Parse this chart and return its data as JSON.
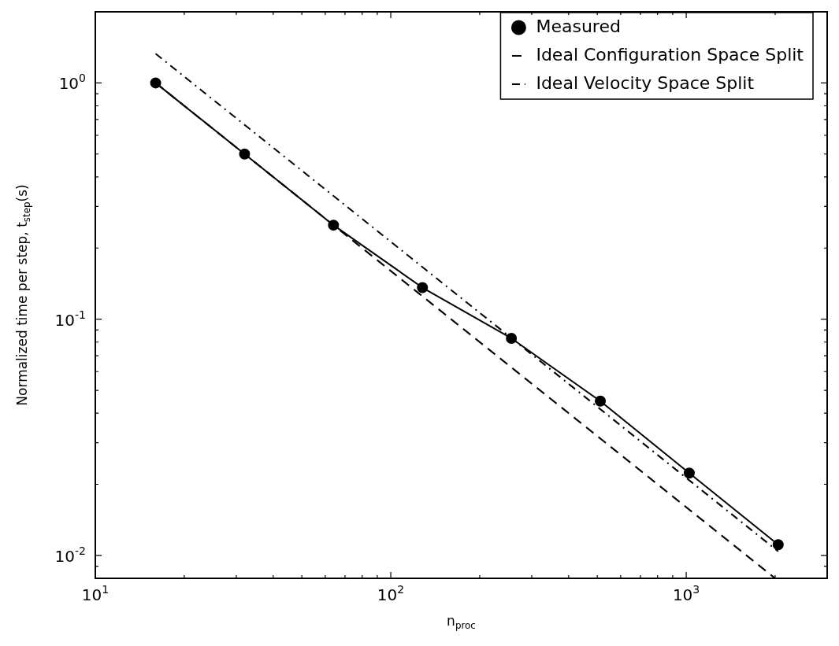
{
  "chart_data": {
    "type": "line",
    "log": "xy",
    "xlabel": "n$_{proc}$",
    "ylabel": "Normalized time per step, t$_{step}$(s)",
    "xlim": [
      10,
      3000
    ],
    "ylim": [
      0.008,
      2
    ],
    "xticks": [
      {
        "value": 10,
        "label": "10$^{1}$"
      },
      {
        "value": 20,
        "label": null
      },
      {
        "value": 30,
        "label": null
      },
      {
        "value": 40,
        "label": null
      },
      {
        "value": 50,
        "label": null
      },
      {
        "value": 60,
        "label": null
      },
      {
        "value": 70,
        "label": null
      },
      {
        "value": 80,
        "label": null
      },
      {
        "value": 90,
        "label": null
      },
      {
        "value": 100,
        "label": "10$^{2}$"
      },
      {
        "value": 200,
        "label": null
      },
      {
        "value": 300,
        "label": null
      },
      {
        "value": 400,
        "label": null
      },
      {
        "value": 500,
        "label": null
      },
      {
        "value": 600,
        "label": null
      },
      {
        "value": 700,
        "label": null
      },
      {
        "value": 800,
        "label": null
      },
      {
        "value": 900,
        "label": null
      },
      {
        "value": 1000,
        "label": "10$^{3}$"
      },
      {
        "value": 2000,
        "label": null
      }
    ],
    "yticks": [
      {
        "value": 0.008,
        "label": null
      },
      {
        "value": 0.009,
        "label": null
      },
      {
        "value": 0.01,
        "label": "10$^{-2}$"
      },
      {
        "value": 0.02,
        "label": null
      },
      {
        "value": 0.03,
        "label": null
      },
      {
        "value": 0.04,
        "label": null
      },
      {
        "value": 0.05,
        "label": null
      },
      {
        "value": 0.06,
        "label": null
      },
      {
        "value": 0.07,
        "label": null
      },
      {
        "value": 0.08,
        "label": null
      },
      {
        "value": 0.09,
        "label": null
      },
      {
        "value": 0.1,
        "label": "10$^{-1}$"
      },
      {
        "value": 0.2,
        "label": null
      },
      {
        "value": 0.3,
        "label": null
      },
      {
        "value": 0.4,
        "label": null
      },
      {
        "value": 0.5,
        "label": null
      },
      {
        "value": 0.6,
        "label": null
      },
      {
        "value": 0.7,
        "label": null
      },
      {
        "value": 0.8,
        "label": null
      },
      {
        "value": 0.9,
        "label": null
      },
      {
        "value": 1,
        "label": "10$^{0}$"
      },
      {
        "value": 2,
        "label": null
      }
    ],
    "grid": false,
    "legend": "top right",
    "series": [
      {
        "name": "Measured",
        "color": "#000000",
        "marker": "circle",
        "line_style": "solid",
        "x": [
          16,
          32,
          64,
          128,
          256,
          512,
          1024,
          2048
        ],
        "values": [
          1.0,
          0.5,
          0.25,
          0.136,
          0.083,
          0.045,
          0.0223,
          0.0111
        ]
      },
      {
        "name": "Ideal Configuration Space Split",
        "color": "#000000",
        "marker": "none",
        "line_style": "dashed",
        "x": [
          16,
          2000
        ],
        "values": [
          1.0,
          0.008
        ]
      },
      {
        "name": "Ideal Velocity Space Split",
        "color": "#000000",
        "marker": "none",
        "line_style": "dashdot",
        "x": [
          16,
          2048
        ],
        "values": [
          1.33,
          0.0104
        ]
      }
    ]
  }
}
